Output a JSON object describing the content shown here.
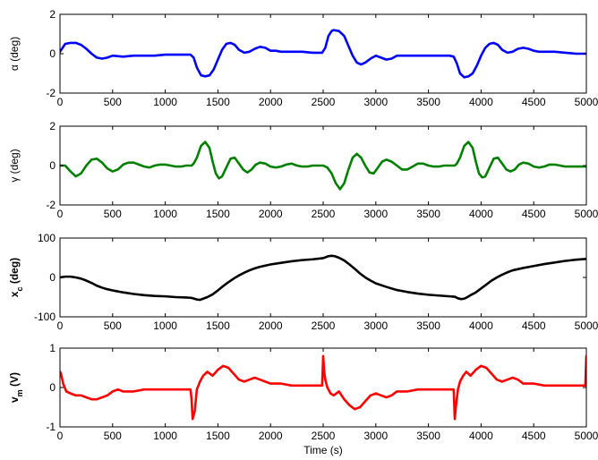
{
  "chart_data": [
    {
      "type": "line",
      "ylabel": "α (deg)",
      "xlim": [
        0,
        5000
      ],
      "ylim": [
        -2,
        2
      ],
      "x_ticks": [
        "0",
        "500",
        "1000",
        "1500",
        "2000",
        "2500",
        "3000",
        "3500",
        "4000",
        "4500",
        "5000"
      ],
      "y_ticks": [
        "2",
        "0",
        "-2"
      ],
      "y_tick_values": [
        2,
        0,
        -2
      ],
      "series": [
        {
          "color": "#0000ff",
          "x": [
            0,
            50,
            100,
            150,
            200,
            250,
            300,
            350,
            400,
            450,
            500,
            600,
            700,
            800,
            900,
            1000,
            1100,
            1200,
            1240,
            1270,
            1300,
            1340,
            1380,
            1420,
            1460,
            1500,
            1540,
            1580,
            1620,
            1660,
            1700,
            1750,
            1800,
            1850,
            1900,
            1950,
            2000,
            2050,
            2100,
            2200,
            2300,
            2400,
            2490,
            2520,
            2550,
            2580,
            2600,
            2650,
            2700,
            2740,
            2780,
            2820,
            2860,
            2900,
            2950,
            3000,
            3050,
            3100,
            3150,
            3200,
            3300,
            3400,
            3500,
            3600,
            3700,
            3740,
            3770,
            3800,
            3840,
            3880,
            3920,
            3960,
            4000,
            4040,
            4080,
            4120,
            4160,
            4200,
            4250,
            4300,
            4350,
            4400,
            4450,
            4500,
            4550,
            4600,
            4700,
            4800,
            4900,
            5000
          ],
          "values": [
            0.1,
            0.5,
            0.55,
            0.55,
            0.45,
            0.25,
            0.0,
            -0.2,
            -0.25,
            -0.2,
            -0.1,
            -0.15,
            -0.1,
            -0.1,
            -0.1,
            -0.05,
            -0.05,
            -0.05,
            -0.05,
            -0.2,
            -0.7,
            -1.1,
            -1.15,
            -1.1,
            -0.8,
            -0.3,
            0.2,
            0.5,
            0.55,
            0.45,
            0.2,
            0.05,
            0.1,
            0.25,
            0.35,
            0.3,
            0.15,
            0.15,
            0.1,
            0.1,
            0.1,
            0.05,
            0.05,
            0.3,
            0.9,
            1.15,
            1.2,
            1.15,
            0.9,
            0.4,
            -0.1,
            -0.45,
            -0.55,
            -0.45,
            -0.25,
            -0.1,
            -0.2,
            -0.3,
            -0.25,
            -0.1,
            -0.1,
            -0.1,
            -0.1,
            -0.1,
            -0.1,
            -0.15,
            -0.5,
            -1.0,
            -1.2,
            -1.15,
            -1.0,
            -0.6,
            -0.1,
            0.3,
            0.5,
            0.55,
            0.45,
            0.2,
            0.05,
            0.1,
            0.25,
            0.3,
            0.25,
            0.15,
            0.1,
            0.1,
            0.1,
            0.05,
            0.0,
            0.0
          ]
        }
      ]
    },
    {
      "type": "line",
      "ylabel": "γ (deg)",
      "xlim": [
        0,
        5000
      ],
      "ylim": [
        -2,
        2
      ],
      "x_ticks": [
        "0",
        "500",
        "1000",
        "1500",
        "2000",
        "2500",
        "3000",
        "3500",
        "4000",
        "4500",
        "5000"
      ],
      "y_ticks": [
        "2",
        "0",
        "-2"
      ],
      "y_tick_values": [
        2,
        0,
        -2
      ],
      "series": [
        {
          "color": "#008000",
          "x": [
            0,
            50,
            100,
            150,
            200,
            250,
            300,
            350,
            400,
            450,
            500,
            550,
            600,
            650,
            700,
            750,
            800,
            850,
            900,
            950,
            1000,
            1050,
            1100,
            1150,
            1200,
            1250,
            1270,
            1300,
            1340,
            1380,
            1420,
            1450,
            1480,
            1510,
            1540,
            1580,
            1620,
            1660,
            1700,
            1740,
            1780,
            1820,
            1860,
            1900,
            1950,
            2000,
            2050,
            2100,
            2150,
            2200,
            2250,
            2300,
            2350,
            2400,
            2450,
            2500,
            2540,
            2580,
            2620,
            2660,
            2700,
            2740,
            2780,
            2820,
            2860,
            2900,
            2940,
            2980,
            3020,
            3060,
            3100,
            3150,
            3200,
            3250,
            3300,
            3350,
            3400,
            3450,
            3500,
            3550,
            3600,
            3650,
            3700,
            3750,
            3770,
            3800,
            3840,
            3880,
            3920,
            3950,
            3980,
            4010,
            4040,
            4080,
            4120,
            4160,
            4200,
            4240,
            4280,
            4320,
            4360,
            4400,
            4450,
            4500,
            4550,
            4600,
            4650,
            4700,
            4750,
            4800,
            4850,
            4900,
            4950,
            5000
          ],
          "values": [
            0.0,
            0.0,
            -0.3,
            -0.55,
            -0.4,
            0.0,
            0.3,
            0.35,
            0.15,
            -0.15,
            -0.3,
            -0.2,
            0.05,
            0.15,
            0.15,
            0.05,
            -0.05,
            -0.1,
            0.0,
            0.05,
            0.05,
            0.0,
            -0.05,
            -0.05,
            0.0,
            0.0,
            0.1,
            0.4,
            1.0,
            1.2,
            0.9,
            0.2,
            -0.4,
            -0.65,
            -0.55,
            -0.1,
            0.35,
            0.4,
            0.1,
            -0.2,
            -0.35,
            -0.2,
            0.05,
            0.15,
            0.1,
            -0.05,
            -0.1,
            -0.05,
            0.05,
            0.1,
            0.0,
            -0.05,
            -0.05,
            0.0,
            0.0,
            0.0,
            -0.1,
            -0.4,
            -0.9,
            -1.2,
            -0.9,
            -0.2,
            0.4,
            0.6,
            0.4,
            0.0,
            -0.35,
            -0.4,
            -0.1,
            0.2,
            0.3,
            0.2,
            0.0,
            -0.2,
            -0.2,
            -0.05,
            0.1,
            0.1,
            0.0,
            -0.05,
            -0.05,
            0.0,
            0.0,
            0.0,
            0.1,
            0.4,
            1.0,
            1.2,
            0.9,
            0.2,
            -0.4,
            -0.6,
            -0.55,
            -0.1,
            0.35,
            0.4,
            0.1,
            -0.2,
            -0.3,
            -0.2,
            0.05,
            0.15,
            0.1,
            -0.05,
            -0.1,
            -0.05,
            0.05,
            0.05,
            0.0,
            -0.05,
            -0.05,
            -0.05,
            -0.05,
            -0.05
          ]
        }
      ]
    },
    {
      "type": "line",
      "ylabel": "x_c (deg)",
      "xlim": [
        0,
        5000
      ],
      "ylim": [
        -100,
        100
      ],
      "x_ticks": [
        "0",
        "500",
        "1000",
        "1500",
        "2000",
        "2500",
        "3000",
        "3500",
        "4000",
        "4500",
        "5000"
      ],
      "y_ticks": [
        "100",
        "0",
        "-100"
      ],
      "y_tick_values": [
        100,
        0,
        -100
      ],
      "series": [
        {
          "color": "#000000",
          "x": [
            0,
            50,
            100,
            150,
            200,
            250,
            300,
            350,
            400,
            450,
            500,
            600,
            700,
            800,
            900,
            1000,
            1100,
            1200,
            1250,
            1300,
            1330,
            1360,
            1400,
            1450,
            1500,
            1550,
            1600,
            1650,
            1700,
            1750,
            1800,
            1850,
            1900,
            2000,
            2100,
            2200,
            2300,
            2400,
            2500,
            2550,
            2580,
            2610,
            2650,
            2700,
            2750,
            2800,
            2850,
            2900,
            2950,
            3000,
            3100,
            3200,
            3300,
            3400,
            3500,
            3600,
            3700,
            3750,
            3780,
            3810,
            3840,
            3870,
            3900,
            3950,
            4000,
            4050,
            4100,
            4150,
            4200,
            4250,
            4300,
            4400,
            4500,
            4600,
            4700,
            4800,
            4900,
            5000
          ],
          "values": [
            0,
            2,
            2,
            0,
            -3,
            -8,
            -14,
            -21,
            -26,
            -30,
            -33,
            -38,
            -42,
            -45,
            -47,
            -48,
            -50,
            -51,
            -52,
            -56,
            -57,
            -54,
            -50,
            -43,
            -33,
            -22,
            -12,
            -3,
            5,
            12,
            18,
            23,
            27,
            33,
            37,
            41,
            44,
            46,
            49,
            54,
            55,
            54,
            50,
            43,
            33,
            22,
            10,
            0,
            -8,
            -15,
            -24,
            -32,
            -37,
            -41,
            -44,
            -46,
            -48,
            -49,
            -53,
            -55,
            -54,
            -50,
            -45,
            -38,
            -28,
            -18,
            -8,
            0,
            7,
            13,
            18,
            24,
            29,
            34,
            38,
            42,
            45,
            47
          ]
        }
      ]
    },
    {
      "type": "line",
      "ylabel": "v_m (V)",
      "xlabel": "Time (s)",
      "xlim": [
        0,
        5000
      ],
      "ylim": [
        -1,
        1
      ],
      "x_ticks": [
        "0",
        "500",
        "1000",
        "1500",
        "2000",
        "2500",
        "3000",
        "3500",
        "4000",
        "4500",
        "5000"
      ],
      "y_ticks": [
        "1",
        "0",
        "-1"
      ],
      "y_tick_values": [
        1,
        0,
        -1
      ],
      "series": [
        {
          "color": "#ff0000",
          "x": [
            0,
            10,
            30,
            60,
            100,
            150,
            200,
            250,
            300,
            350,
            400,
            450,
            500,
            550,
            600,
            700,
            800,
            900,
            1000,
            1100,
            1200,
            1240,
            1250,
            1260,
            1280,
            1300,
            1330,
            1360,
            1400,
            1450,
            1500,
            1550,
            1600,
            1650,
            1700,
            1750,
            1800,
            1850,
            1900,
            2000,
            2100,
            2200,
            2300,
            2400,
            2480,
            2490,
            2500,
            2505,
            2510,
            2520,
            2540,
            2570,
            2600,
            2650,
            2700,
            2750,
            2800,
            2850,
            2900,
            2950,
            3000,
            3050,
            3100,
            3150,
            3200,
            3300,
            3400,
            3500,
            3600,
            3700,
            3740,
            3750,
            3760,
            3780,
            3800,
            3830,
            3860,
            3900,
            3950,
            4000,
            4050,
            4100,
            4150,
            4200,
            4250,
            4300,
            4350,
            4400,
            4500,
            4600,
            4700,
            4800,
            4900,
            4980,
            4990,
            5000
          ],
          "values": [
            0.4,
            0.35,
            0.1,
            -0.1,
            -0.15,
            -0.2,
            -0.2,
            -0.25,
            -0.3,
            -0.3,
            -0.25,
            -0.2,
            -0.1,
            -0.05,
            -0.1,
            -0.1,
            -0.05,
            -0.05,
            -0.05,
            -0.05,
            -0.05,
            -0.05,
            -0.3,
            -0.8,
            -0.6,
            -0.05,
            0.15,
            0.3,
            0.4,
            0.3,
            0.45,
            0.55,
            0.5,
            0.35,
            0.2,
            0.15,
            0.2,
            0.25,
            0.2,
            0.1,
            0.1,
            0.05,
            0.05,
            0.05,
            0.05,
            0.05,
            0.8,
            0.6,
            0.4,
            0.2,
            0.0,
            -0.15,
            -0.2,
            -0.1,
            -0.3,
            -0.45,
            -0.55,
            -0.5,
            -0.35,
            -0.2,
            -0.15,
            -0.2,
            -0.25,
            -0.2,
            -0.1,
            -0.1,
            -0.05,
            -0.05,
            -0.05,
            -0.05,
            -0.05,
            -0.8,
            -0.5,
            -0.05,
            0.15,
            0.3,
            0.4,
            0.3,
            0.45,
            0.55,
            0.5,
            0.35,
            0.2,
            0.15,
            0.2,
            0.25,
            0.2,
            0.1,
            0.1,
            0.05,
            0.05,
            0.05,
            0.05,
            0.05,
            0.05,
            0.8
          ]
        }
      ]
    }
  ]
}
